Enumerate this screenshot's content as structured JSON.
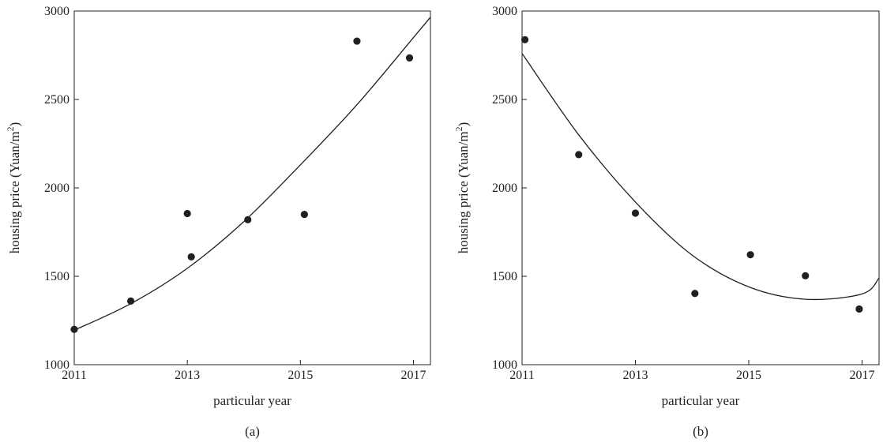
{
  "chart_data": [
    {
      "type": "scatter",
      "caption": "(a)",
      "xlabel": "particular year",
      "ylabel": "housing price (Yuan/m",
      "ylabel_superscript": "2",
      "ylabel_suffix": ")",
      "xlim": [
        2011,
        2017.3
      ],
      "ylim": [
        1000,
        3000
      ],
      "xticks": [
        2011,
        2013,
        2015,
        2017
      ],
      "yticks": [
        1000,
        1500,
        2000,
        2500,
        3000
      ],
      "points": [
        {
          "x": 2011.0,
          "y": 1200
        },
        {
          "x": 2012.0,
          "y": 1360
        },
        {
          "x": 2013.0,
          "y": 1855
        },
        {
          "x": 2013.07,
          "y": 1610
        },
        {
          "x": 2014.07,
          "y": 1820
        },
        {
          "x": 2015.07,
          "y": 1850
        },
        {
          "x": 2016.0,
          "y": 2830
        },
        {
          "x": 2016.93,
          "y": 2735
        }
      ],
      "fit": {
        "x": [
          2011,
          2012,
          2013,
          2014,
          2015,
          2016,
          2017,
          2017.3
        ],
        "y": [
          1195,
          1345,
          1545,
          1810,
          2130,
          2470,
          2850,
          2965
        ]
      }
    },
    {
      "type": "scatter",
      "caption": "(b)",
      "xlabel": "particular year",
      "ylabel": "housing price (Yuan/m",
      "ylabel_superscript": "2",
      "ylabel_suffix": ")",
      "xlim": [
        2011,
        2017.3
      ],
      "ylim": [
        1000,
        3000
      ],
      "xticks": [
        2011,
        2013,
        2015,
        2017
      ],
      "yticks": [
        1000,
        1500,
        2000,
        2500,
        3000
      ],
      "points": [
        {
          "x": 2011.05,
          "y": 2838
        },
        {
          "x": 2012.0,
          "y": 2188
        },
        {
          "x": 2013.0,
          "y": 1857
        },
        {
          "x": 2014.05,
          "y": 1403
        },
        {
          "x": 2015.03,
          "y": 1622
        },
        {
          "x": 2016.0,
          "y": 1503
        },
        {
          "x": 2016.95,
          "y": 1315
        }
      ],
      "fit": {
        "x": [
          2011,
          2012,
          2013,
          2014,
          2015,
          2016,
          2017,
          2017.3
        ],
        "y": [
          2760,
          2300,
          1920,
          1620,
          1440,
          1370,
          1400,
          1490
        ]
      }
    }
  ]
}
